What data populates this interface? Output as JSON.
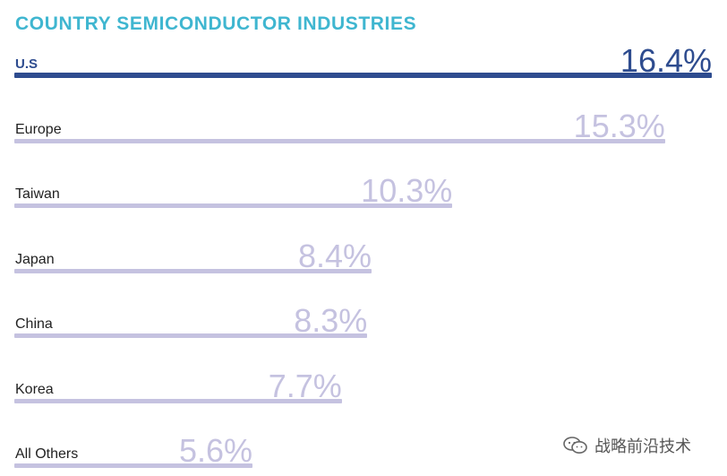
{
  "title": "COUNTRY SEMICONDUCTOR INDUSTRIES",
  "colors": {
    "title": "#3fb6d0",
    "highlight_bar": "#2e4c8f",
    "highlight_value": "#2e4c8f",
    "bar": "#c5c2e0",
    "value": "#c5c2e0"
  },
  "chart_data": {
    "type": "bar",
    "orientation": "horizontal",
    "title": "COUNTRY SEMICONDUCTOR INDUSTRIES",
    "categories": [
      "U.S",
      "Europe",
      "Taiwan",
      "Japan",
      "China",
      "Korea",
      "All Others"
    ],
    "values": [
      16.4,
      15.3,
      10.3,
      8.4,
      8.3,
      7.7,
      5.6
    ],
    "value_labels": [
      "16.4%",
      "15.3%",
      "10.3%",
      "8.4%",
      "8.3%",
      "7.7%",
      "5.6%"
    ],
    "unit": "%",
    "xlim": [
      0,
      16.4
    ],
    "grid": false,
    "legend": "none"
  },
  "watermark": {
    "icon": "wechat-icon",
    "text": "战略前沿技术"
  }
}
